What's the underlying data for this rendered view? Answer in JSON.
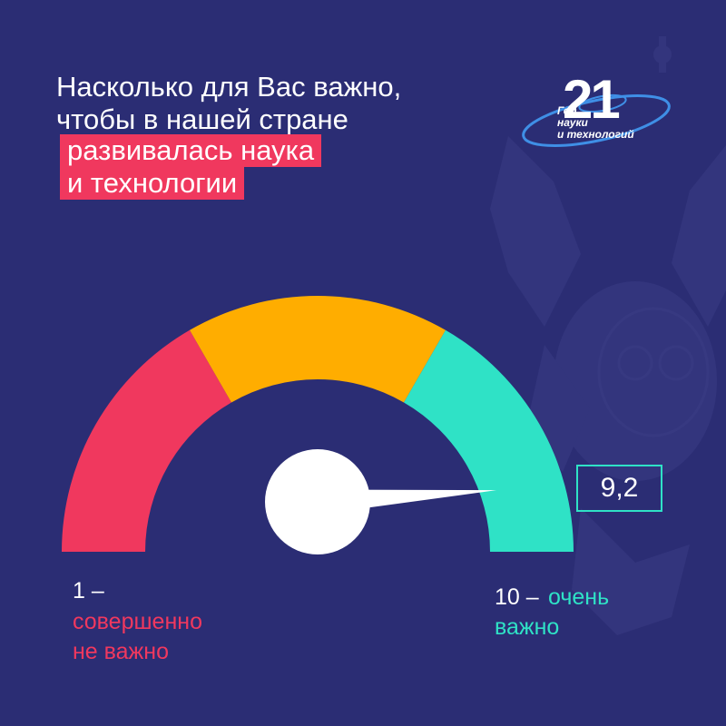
{
  "question": {
    "line1": "Насколько для Вас важно,",
    "line2": "чтобы в нашей стране",
    "line3_highlight": "развивалась наука",
    "line4_highlight": "и технологии"
  },
  "logo": {
    "number": "21",
    "text_lines": [
      "Год",
      "науки",
      "и технологий"
    ]
  },
  "gauge": {
    "value": 9.2,
    "value_label": "9,2",
    "min": 1,
    "max": 10,
    "segment_colors": [
      "#f0385e",
      "#ffad00",
      "#2fe2c6"
    ],
    "needle_color": "#ffffff",
    "hub_icon": "white-circle"
  },
  "scale_labels": {
    "min_number": "1 –",
    "min_text_line1": "совершенно",
    "min_text_line2": "не важно",
    "max_number": "10 –",
    "max_text_line1": "очень",
    "max_text_line2": "важно"
  },
  "colors": {
    "background": "#2b2d74",
    "accent_red": "#f0385e",
    "accent_yellow": "#ffad00",
    "accent_teal": "#2fe2c6"
  }
}
